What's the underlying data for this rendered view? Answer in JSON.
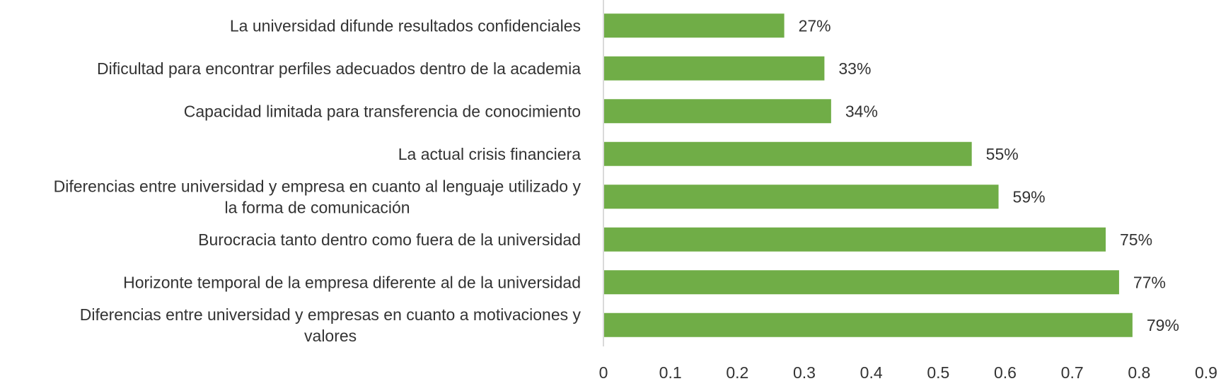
{
  "chart_data": {
    "type": "bar",
    "orientation": "horizontal",
    "title": "",
    "xlabel": "",
    "ylabel": "",
    "xlim": [
      0,
      0.9
    ],
    "x_ticks": [
      "0",
      "0.1",
      "0.2",
      "0.3",
      "0.4",
      "0.5",
      "0.6",
      "0.7",
      "0.8",
      "0.9"
    ],
    "grid": false,
    "bar_color": "#70AD47",
    "categories": [
      [
        "La universidad difunde resultados confidenciales"
      ],
      [
        "Dificultad para encontrar perfiles adecuados dentro de la academia"
      ],
      [
        "Capacidad limitada para transferencia de conocimiento"
      ],
      [
        "La actual crisis financiera"
      ],
      [
        "Diferencias entre universidad y empresa en cuanto al lenguaje utilizado y",
        "la forma de comunicación"
      ],
      [
        "Burocracia tanto dentro como fuera de la universidad"
      ],
      [
        "Horizonte temporal de la empresa diferente al de la universidad"
      ],
      [
        "Diferencias entre universidad y empresas en cuanto a motivaciones y",
        "valores"
      ]
    ],
    "values": [
      0.27,
      0.33,
      0.34,
      0.55,
      0.59,
      0.75,
      0.77,
      0.79
    ],
    "data_labels": [
      "27%",
      "33%",
      "34%",
      "55%",
      "59%",
      "75%",
      "77%",
      "79%"
    ]
  }
}
